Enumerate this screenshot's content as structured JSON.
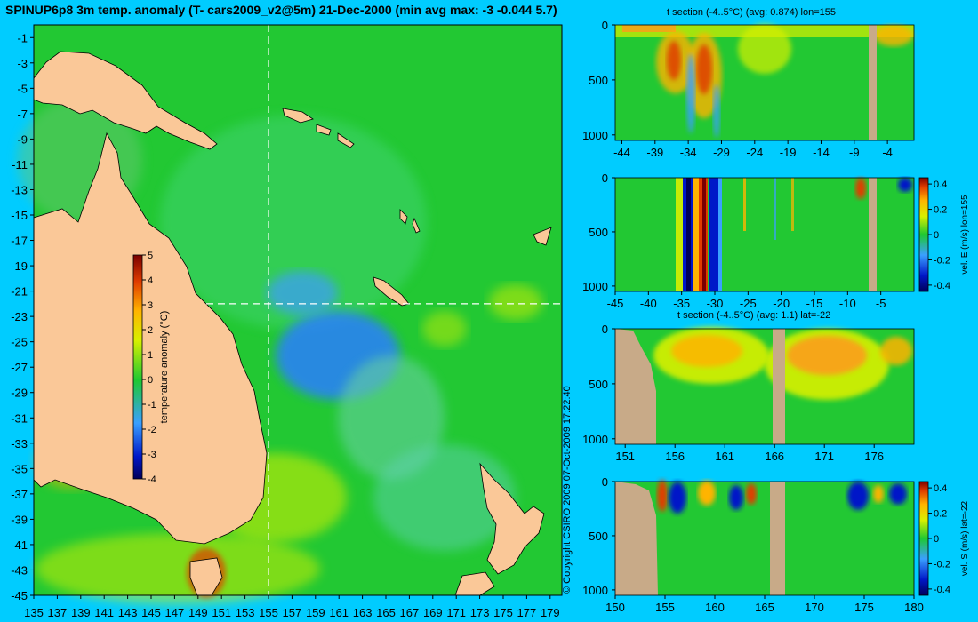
{
  "title": "SPINUP6p8 3m temp. anomaly (T- cars2009_v2@5m) 21-Dec-2000 (min avg max: -3 -0.044 5.7)",
  "copyright": "© Copyright CSIRO 2009   07-Oct-2009 17:22:40",
  "colors": {
    "background": "#00ccff",
    "ocean": "#22c833",
    "land_map": "#fac898",
    "land_section": "#c8aa88",
    "warm": "#ff9a1a",
    "cool": "#2a7fff"
  },
  "chart_data": [
    {
      "type": "heatmap",
      "name": "map",
      "title": "SPINUP6p8 3m temp. anomaly (T- cars2009_v2@5m) 21-Dec-2000 (min avg max: -3 -0.044 5.7)",
      "xlim": [
        135,
        180
      ],
      "ylim": [
        -45,
        0
      ],
      "xticks": [
        135,
        137,
        139,
        141,
        143,
        145,
        147,
        149,
        151,
        153,
        155,
        157,
        159,
        161,
        163,
        165,
        167,
        169,
        171,
        173,
        175,
        177,
        179
      ],
      "yticks": [
        -1,
        -3,
        -5,
        -7,
        -9,
        -11,
        -13,
        -15,
        -17,
        -19,
        -21,
        -23,
        -25,
        -27,
        -29,
        -31,
        -33,
        -35,
        -37,
        -39,
        -41,
        -43,
        -45
      ],
      "section_lon": 155,
      "section_lat": -22,
      "colorbar": {
        "label": "temperature anomaly (°C)",
        "ticks": [
          5,
          4,
          3,
          2,
          1,
          0,
          -1,
          -2,
          -3,
          -4
        ],
        "range": [
          -4,
          5
        ]
      }
    },
    {
      "type": "heatmap",
      "name": "t-section-lon",
      "title": "t section (-4..5°C) (avg: 0.874) lon=155",
      "xlim": [
        -45,
        0
      ],
      "ylim": [
        1050,
        0
      ],
      "xticks": [
        -44,
        -39,
        -34,
        -29,
        -24,
        -19,
        -14,
        -9,
        -4
      ],
      "yticks": [
        0,
        500,
        1000
      ]
    },
    {
      "type": "heatmap",
      "name": "vel-e-section",
      "xlim": [
        -45,
        0
      ],
      "ylim": [
        1050,
        0
      ],
      "xticks": [
        -45,
        -40,
        -35,
        -30,
        -25,
        -20,
        -15,
        -10,
        -5
      ],
      "yticks": [
        0,
        500,
        1000
      ],
      "colorbar": {
        "label": "vel. E (m/s) lon=155",
        "ticks": [
          0.4,
          0.2,
          0,
          -0.2,
          -0.4
        ],
        "range": [
          -0.45,
          0.45
        ]
      }
    },
    {
      "type": "heatmap",
      "name": "t-section-lat",
      "title": "t section (-4..5°C) (avg: 1.1) lat=-22",
      "xlim": [
        150,
        180
      ],
      "ylim": [
        1050,
        0
      ],
      "xticks": [
        151,
        156,
        161,
        166,
        171,
        176
      ],
      "yticks": [
        0,
        500,
        1000
      ]
    },
    {
      "type": "heatmap",
      "name": "vel-s-section",
      "xlim": [
        150,
        180
      ],
      "ylim": [
        1050,
        0
      ],
      "xticks": [
        150,
        155,
        160,
        165,
        170,
        175,
        180
      ],
      "yticks": [
        0,
        500,
        1000
      ],
      "colorbar": {
        "label": "vel. S (m/s) lat=-22",
        "ticks": [
          0.4,
          0.2,
          0,
          -0.2,
          -0.4
        ],
        "range": [
          -0.45,
          0.45
        ]
      }
    }
  ]
}
